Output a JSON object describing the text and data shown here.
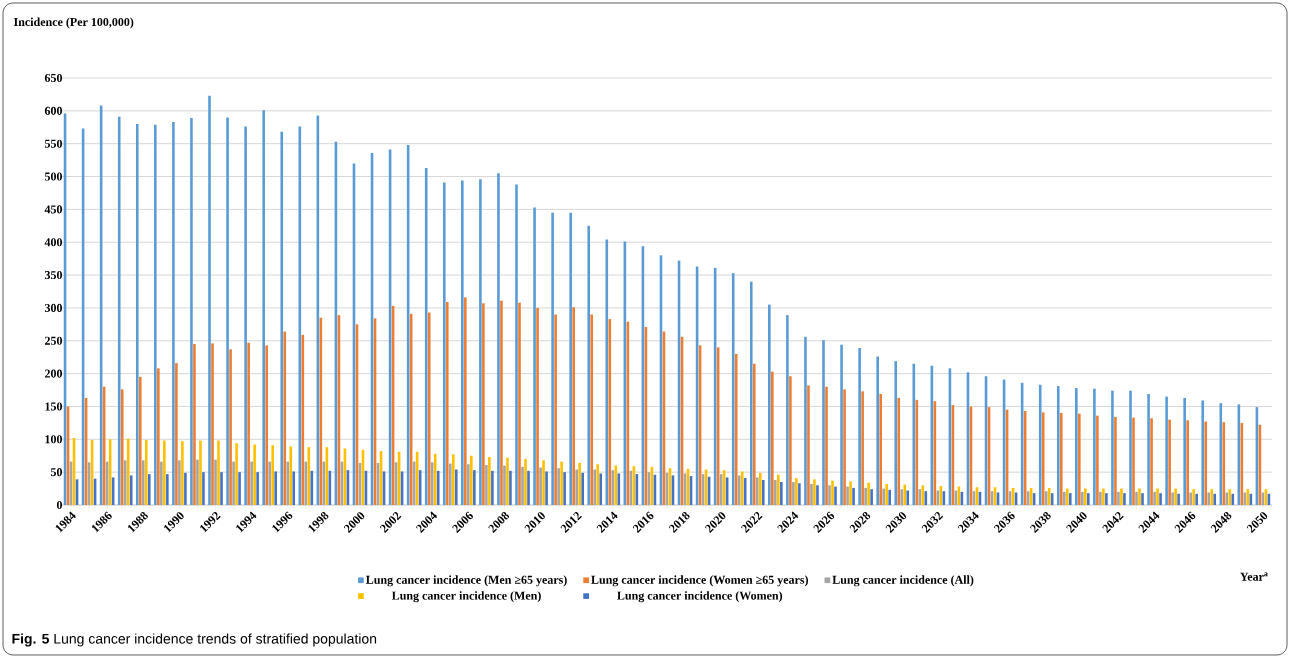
{
  "chart_data": {
    "type": "bar",
    "ylabel": "Incidence (Per 100,000)",
    "xlabel": "Year$^{a}$",
    "annotations": [
      "**Fig. 5** Lung cancer incidence trends of stratified population"
    ],
    "categories": [
      "1984",
      null,
      "1986",
      null,
      "1988",
      null,
      "1990",
      null,
      "1992",
      null,
      "1994",
      null,
      "1996",
      null,
      "1998",
      null,
      "2000",
      null,
      "2002",
      null,
      "2004",
      null,
      "2006",
      null,
      "2008",
      null,
      "2010",
      null,
      "2012",
      null,
      "2014",
      null,
      "2016",
      null,
      "2018",
      null,
      "2020",
      null,
      "2022",
      null,
      "2024",
      null,
      "2026",
      null,
      "2028",
      null,
      "2030",
      null,
      "2032",
      null,
      "2034",
      null,
      "2036",
      null,
      "2038",
      null,
      "2040",
      null,
      "2042",
      null,
      "2044",
      null,
      "2046",
      null,
      "2048",
      null,
      "2050"
    ],
    "series": [
      {
        "name": "Lung cancer incidence (Men ≥65 years)",
        "color": "#5b9bd5",
        "values": [
          596,
          573,
          608,
          591,
          580,
          579,
          583,
          589,
          623,
          590,
          576,
          601,
          568,
          576,
          593,
          553,
          520,
          536,
          541,
          548,
          513,
          491,
          494,
          496,
          505,
          488,
          453,
          445,
          445,
          425,
          404,
          401,
          394,
          380,
          372,
          363,
          361,
          353,
          340,
          305,
          289,
          256,
          251,
          244,
          239,
          226,
          219,
          215,
          212,
          208,
          202,
          196,
          191,
          186,
          183,
          181,
          178,
          177,
          174,
          174,
          169,
          165,
          163,
          159,
          155,
          153,
          149
        ]
      },
      {
        "name": "Lung cancer incidence (Women ≥65 years)",
        "color": "#ed7d31",
        "values": [
          150,
          163,
          180,
          176,
          195,
          208,
          216,
          245,
          246,
          237,
          247,
          243,
          264,
          259,
          285,
          289,
          275,
          284,
          303,
          291,
          293,
          309,
          316,
          307,
          311,
          308,
          300,
          290,
          301,
          290,
          283,
          279,
          271,
          264,
          256,
          243,
          240,
          230,
          215,
          203,
          196,
          182,
          180,
          176,
          173,
          169,
          163,
          160,
          158,
          152,
          150,
          149,
          145,
          143,
          141,
          140,
          139,
          136,
          134,
          133,
          132,
          130,
          129,
          127,
          126,
          125,
          122
        ]
      },
      {
        "name": "Lung cancer incidence (All)",
        "color": "#a5a5a5",
        "values": [
          66,
          65,
          66,
          68,
          68,
          66,
          68,
          69,
          69,
          66,
          66,
          66,
          66,
          66,
          66,
          66,
          64,
          64,
          65,
          66,
          65,
          63,
          62,
          61,
          60,
          58,
          57,
          56,
          54,
          54,
          53,
          52,
          50,
          49,
          48,
          47,
          47,
          45,
          42,
          38,
          35,
          32,
          30,
          28,
          26,
          25,
          24,
          24,
          22,
          22,
          21,
          21,
          21,
          21,
          21,
          20,
          20,
          20,
          20,
          20,
          20,
          19,
          19,
          19,
          19,
          19,
          19
        ]
      },
      {
        "name": "Lung cancer incidence (Men)",
        "color": "#ffc000",
        "values": [
          102,
          99,
          100,
          101,
          99,
          98,
          97,
          98,
          98,
          94,
          92,
          91,
          89,
          88,
          88,
          86,
          84,
          82,
          81,
          81,
          78,
          77,
          75,
          73,
          72,
          70,
          68,
          66,
          64,
          62,
          60,
          59,
          58,
          56,
          55,
          54,
          53,
          51,
          49,
          46,
          41,
          39,
          37,
          36,
          34,
          32,
          31,
          30,
          29,
          28,
          27,
          27,
          26,
          26,
          26,
          25,
          25,
          25,
          25,
          25,
          25,
          25,
          24,
          24,
          24,
          24,
          24
        ]
      },
      {
        "name": "Lung cancer incidence (Women)",
        "color": "#4472c4",
        "values": [
          39,
          40,
          42,
          45,
          47,
          47,
          49,
          50,
          50,
          50,
          50,
          51,
          51,
          52,
          52,
          53,
          52,
          51,
          51,
          53,
          52,
          54,
          53,
          52,
          52,
          52,
          51,
          50,
          49,
          48,
          48,
          47,
          46,
          45,
          44,
          43,
          42,
          41,
          38,
          35,
          33,
          30,
          28,
          26,
          24,
          23,
          22,
          21,
          21,
          20,
          20,
          19,
          19,
          18,
          18,
          18,
          18,
          18,
          18,
          18,
          18,
          17,
          17,
          17,
          17,
          17,
          17
        ]
      }
    ],
    "ylim": [
      0,
      650
    ],
    "yticks": [
      0,
      50,
      100,
      150,
      200,
      250,
      300,
      350,
      400,
      450,
      500,
      550,
      600,
      650
    ],
    "grid": "y",
    "legend": "bottom"
  }
}
